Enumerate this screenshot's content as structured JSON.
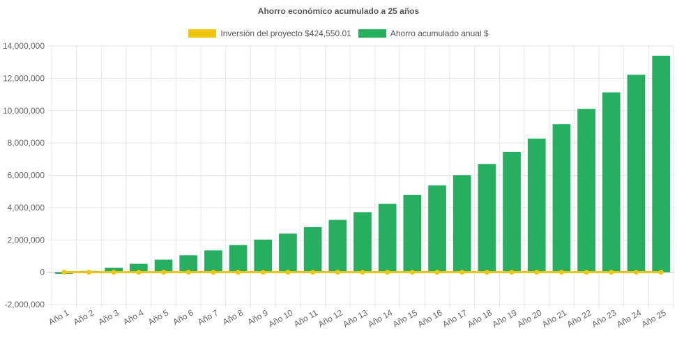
{
  "chart_data": {
    "type": "bar",
    "title": "Ahorro económico acumulado a 25 años",
    "categories": [
      "Año 1",
      "Año 2",
      "Año 3",
      "Año 4",
      "Año 5",
      "Año 6",
      "Año 7",
      "Año 8",
      "Año 9",
      "Año 10",
      "Año 11",
      "Año 12",
      "Año 13",
      "Año 14",
      "Año 15",
      "Año 16",
      "Año 17",
      "Año 18",
      "Año 19",
      "Año 20",
      "Año 21",
      "Año 22",
      "Año 23",
      "Año 24",
      "Año 25"
    ],
    "series": [
      {
        "name": "Inversión del proyecto $424,550.01",
        "type": "line",
        "color": "#f1c40f",
        "values": [
          0,
          0,
          0,
          0,
          0,
          0,
          0,
          0,
          0,
          0,
          0,
          0,
          0,
          0,
          0,
          0,
          0,
          0,
          0,
          0,
          0,
          0,
          0,
          0,
          0
        ]
      },
      {
        "name": "Ahorro acumulado anual $",
        "type": "bar",
        "color": "#27ae60",
        "values": [
          -100000,
          80000,
          280000,
          520000,
          780000,
          1050000,
          1350000,
          1680000,
          2020000,
          2390000,
          2790000,
          3240000,
          3720000,
          4230000,
          4780000,
          5370000,
          6010000,
          6700000,
          7450000,
          8270000,
          9160000,
          10110000,
          11130000,
          12220000,
          13400000
        ]
      }
    ],
    "ylim": [
      -2000000,
      14000000
    ],
    "y_ticks": [
      -2000000,
      0,
      2000000,
      4000000,
      6000000,
      8000000,
      10000000,
      12000000,
      14000000
    ],
    "y_tick_labels": [
      "-2,000,000",
      "0",
      "2,000,000",
      "4,000,000",
      "6,000,000",
      "8,000,000",
      "10,000,000",
      "12,000,000",
      "14,000,000"
    ],
    "grid": true,
    "legend_position": "top"
  }
}
